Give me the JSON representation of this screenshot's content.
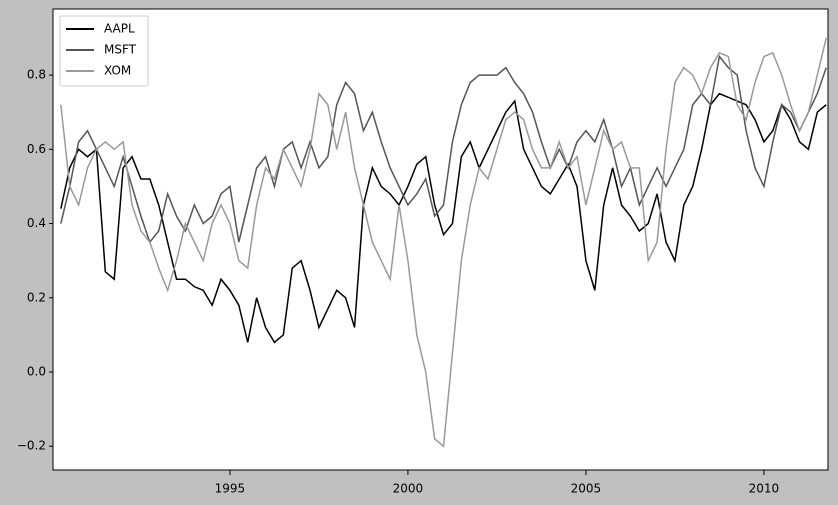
{
  "chart_data": {
    "type": "line",
    "x": [
      1990.25,
      1990.5,
      1990.75,
      1991,
      1991.25,
      1991.5,
      1991.75,
      1992,
      1992.25,
      1992.5,
      1992.75,
      1993,
      1993.25,
      1993.5,
      1993.75,
      1994,
      1994.25,
      1994.5,
      1994.75,
      1995,
      1995.25,
      1995.5,
      1995.75,
      1996,
      1996.25,
      1996.5,
      1996.75,
      1997,
      1997.25,
      1997.5,
      1997.75,
      1998,
      1998.25,
      1998.5,
      1998.75,
      1999,
      1999.25,
      1999.5,
      1999.75,
      2000,
      2000.25,
      2000.5,
      2000.75,
      2001,
      2001.25,
      2001.5,
      2001.75,
      2002,
      2002.25,
      2002.5,
      2002.75,
      2003,
      2003.25,
      2003.5,
      2003.75,
      2004,
      2004.25,
      2004.5,
      2004.75,
      2005,
      2005.25,
      2005.5,
      2005.75,
      2006,
      2006.25,
      2006.5,
      2006.75,
      2007,
      2007.25,
      2007.5,
      2007.75,
      2008,
      2008.25,
      2008.5,
      2008.75,
      2009,
      2009.25,
      2009.5,
      2009.75,
      2010,
      2010.25,
      2010.5,
      2010.75,
      2011,
      2011.25,
      2011.5,
      2011.75
    ],
    "series": [
      {
        "name": "AAPL",
        "color": "#000000",
        "values": [
          0.44,
          0.55,
          0.6,
          0.58,
          0.6,
          0.27,
          0.25,
          0.55,
          0.58,
          0.52,
          0.52,
          0.45,
          0.35,
          0.25,
          0.25,
          0.23,
          0.22,
          0.18,
          0.25,
          0.22,
          0.18,
          0.08,
          0.2,
          0.12,
          0.08,
          0.1,
          0.28,
          0.3,
          0.22,
          0.12,
          0.17,
          0.22,
          0.2,
          0.12,
          0.45,
          0.55,
          0.5,
          0.48,
          0.45,
          0.5,
          0.56,
          0.58,
          0.45,
          0.37,
          0.4,
          0.58,
          0.62,
          0.55,
          0.6,
          0.65,
          0.7,
          0.73,
          0.6,
          0.55,
          0.5,
          0.48,
          0.52,
          0.56,
          0.5,
          0.3,
          0.22,
          0.45,
          0.55,
          0.45,
          0.42,
          0.38,
          0.4,
          0.48,
          0.35,
          0.3,
          0.45,
          0.5,
          0.6,
          0.72,
          0.75,
          0.74,
          0.73,
          0.72,
          0.68,
          0.62,
          0.65,
          0.72,
          0.68,
          0.62,
          0.6,
          0.7,
          0.72
        ]
      },
      {
        "name": "MSFT",
        "color": "#555555",
        "values": [
          0.4,
          0.5,
          0.62,
          0.65,
          0.6,
          0.55,
          0.5,
          0.58,
          0.5,
          0.42,
          0.35,
          0.38,
          0.48,
          0.42,
          0.38,
          0.45,
          0.4,
          0.42,
          0.48,
          0.5,
          0.35,
          0.45,
          0.55,
          0.58,
          0.5,
          0.6,
          0.62,
          0.55,
          0.62,
          0.55,
          0.58,
          0.72,
          0.78,
          0.75,
          0.65,
          0.7,
          0.62,
          0.55,
          0.5,
          0.45,
          0.48,
          0.52,
          0.42,
          0.45,
          0.62,
          0.72,
          0.78,
          0.8,
          0.8,
          0.8,
          0.82,
          0.78,
          0.75,
          0.7,
          0.62,
          0.55,
          0.6,
          0.55,
          0.62,
          0.65,
          0.62,
          0.68,
          0.6,
          0.5,
          0.55,
          0.45,
          0.5,
          0.55,
          0.5,
          0.55,
          0.6,
          0.72,
          0.75,
          0.72,
          0.85,
          0.82,
          0.8,
          0.65,
          0.55,
          0.5,
          0.62,
          0.72,
          0.7,
          0.65,
          0.7,
          0.75,
          0.82
        ]
      },
      {
        "name": "XOM",
        "color": "#999999",
        "values": [
          0.72,
          0.5,
          0.45,
          0.55,
          0.6,
          0.62,
          0.6,
          0.62,
          0.45,
          0.38,
          0.35,
          0.28,
          0.22,
          0.3,
          0.4,
          0.35,
          0.3,
          0.4,
          0.45,
          0.4,
          0.3,
          0.28,
          0.45,
          0.55,
          0.52,
          0.6,
          0.55,
          0.5,
          0.6,
          0.75,
          0.72,
          0.6,
          0.7,
          0.55,
          0.45,
          0.35,
          0.3,
          0.25,
          0.45,
          0.3,
          0.1,
          0.0,
          -0.18,
          -0.2,
          0.05,
          0.3,
          0.45,
          0.55,
          0.52,
          0.6,
          0.68,
          0.7,
          0.68,
          0.6,
          0.55,
          0.55,
          0.62,
          0.55,
          0.58,
          0.45,
          0.55,
          0.65,
          0.6,
          0.62,
          0.55,
          0.55,
          0.3,
          0.35,
          0.6,
          0.78,
          0.82,
          0.8,
          0.75,
          0.82,
          0.86,
          0.85,
          0.72,
          0.68,
          0.78,
          0.85,
          0.86,
          0.8,
          0.72,
          0.65,
          0.7,
          0.8,
          0.9
        ]
      }
    ],
    "xlim": [
      1990.03,
      2011.8
    ],
    "xticks": [
      1995,
      2000,
      2005,
      2010
    ],
    "ylim": [
      -0.264,
      0.978
    ],
    "yticks": [
      {
        "value": -0.2,
        "label": "−0.2"
      },
      {
        "value": 0,
        "label": "0.0"
      },
      0.2,
      0.4,
      0.6,
      0.8
    ],
    "grid": false,
    "legend": "upper-left"
  }
}
